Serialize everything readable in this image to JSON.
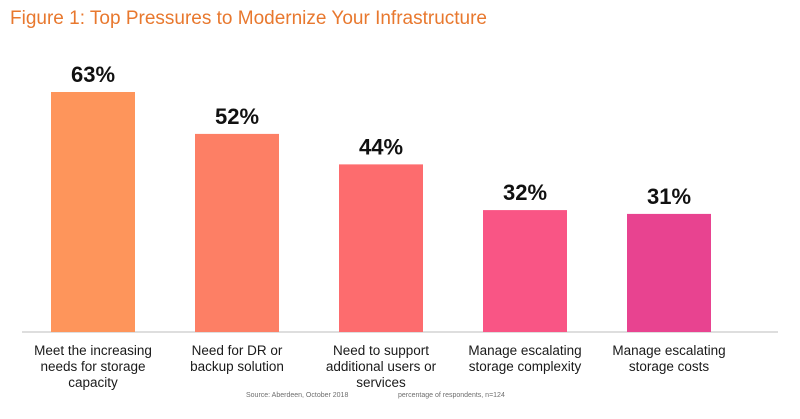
{
  "chart_data": {
    "type": "bar",
    "title": "Figure 1: Top Pressures to Modernize Your Infrastructure",
    "categories": [
      "Meet the increasing needs for storage capacity",
      "Need for DR or backup solution",
      "Need to support additional users or services",
      "Manage escalating storage complexity",
      "Manage escalating storage costs"
    ],
    "category_lines": [
      [
        "Meet the increasing",
        "needs for storage",
        "capacity"
      ],
      [
        "Need for DR or",
        "backup solution"
      ],
      [
        "Need to support",
        "additional users or",
        "services"
      ],
      [
        "Manage escalating",
        "storage complexity"
      ],
      [
        "Manage escalating",
        "storage costs"
      ]
    ],
    "values": [
      63,
      52,
      44,
      32,
      31
    ],
    "value_labels": [
      "63%",
      "52%",
      "44%",
      "32%",
      "31%"
    ],
    "colors": [
      "#fe955b",
      "#fd7f65",
      "#fd6c6e",
      "#f95585",
      "#e84390"
    ],
    "ylim": [
      0,
      100
    ],
    "grid": false,
    "legend": "none",
    "source": "Source: Aberdeen, October 2018",
    "note": "percentage of respondents, n=124"
  }
}
